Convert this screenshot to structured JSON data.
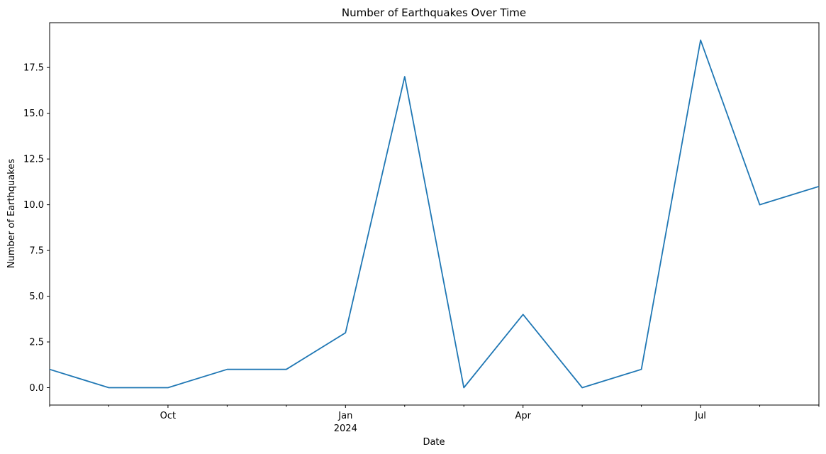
{
  "chart_data": {
    "type": "line",
    "title": "Number of Earthquakes Over Time",
    "xlabel": "Date",
    "ylabel": "Number of Earthquakes",
    "x": [
      "2023-08",
      "2023-09",
      "2023-10",
      "2023-11",
      "2023-12",
      "2024-01",
      "2024-02",
      "2024-03",
      "2024-04",
      "2024-05",
      "2024-06",
      "2024-07",
      "2024-08",
      "2024-09"
    ],
    "series": [
      {
        "values": [
          1,
          0,
          0,
          1,
          1,
          3,
          17,
          0,
          4,
          0,
          1,
          19,
          10,
          11
        ]
      }
    ],
    "ylim": [
      -0.95,
      19.95
    ],
    "yticks": [
      "0.0",
      "2.5",
      "5.0",
      "7.5",
      "10.0",
      "12.5",
      "15.0",
      "17.5"
    ],
    "yticks_values": [
      0,
      2.5,
      5,
      7.5,
      10,
      12.5,
      15,
      17.5
    ],
    "xticks_major": [
      {
        "label": "Oct",
        "sublabel": ""
      },
      {
        "label": "Jan",
        "sublabel": "2024"
      },
      {
        "label": "Apr",
        "sublabel": ""
      },
      {
        "label": "Jul",
        "sublabel": ""
      }
    ],
    "grid": false,
    "legend": "none",
    "line_color": "#1f77b4"
  }
}
